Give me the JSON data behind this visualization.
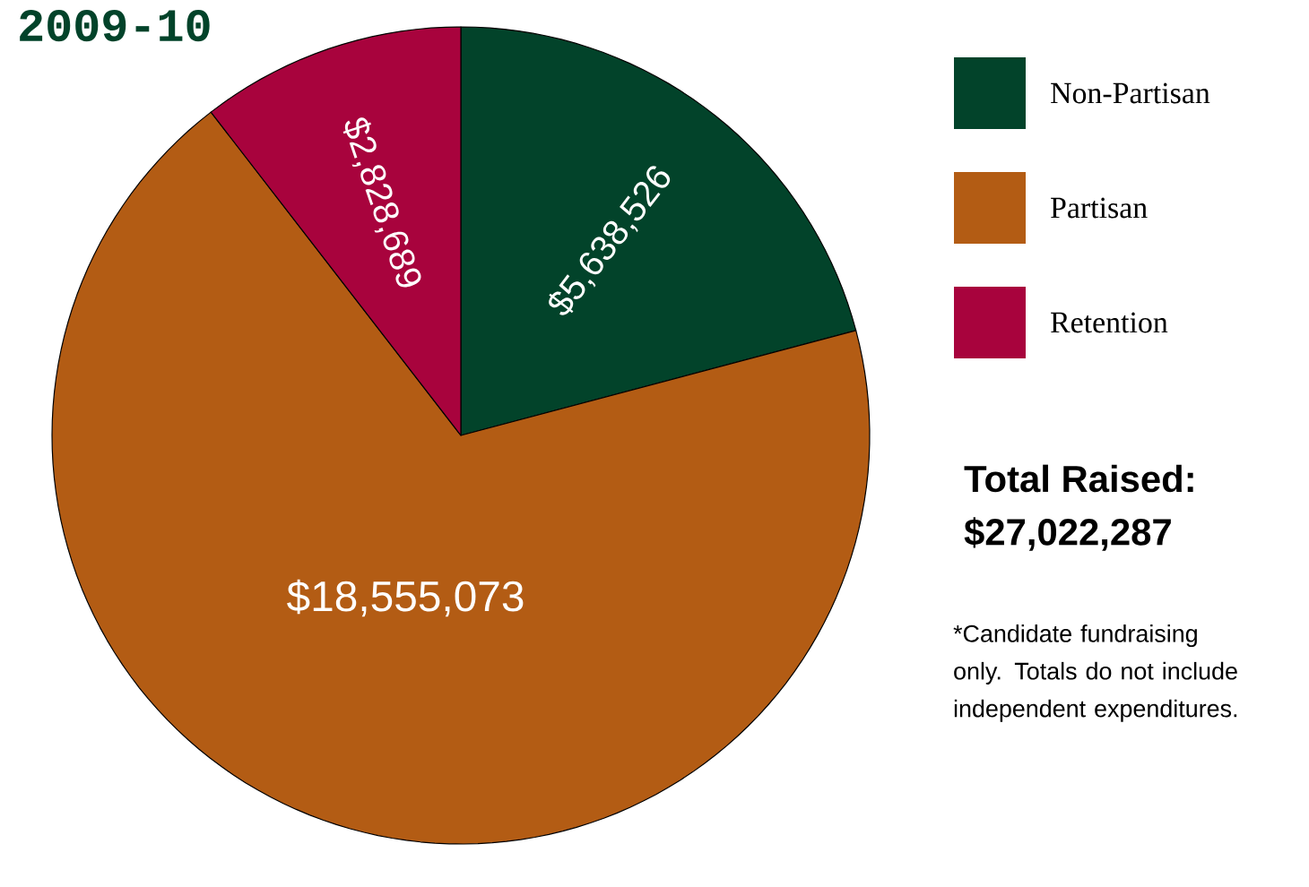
{
  "chart_data": {
    "type": "pie",
    "title": "2009-10",
    "categories": [
      "Non-Partisan",
      "Partisan",
      "Retention"
    ],
    "values": [
      5638526,
      18555073,
      2828689
    ],
    "colors": [
      "#02432a",
      "#b35c14",
      "#a8033d"
    ],
    "value_labels": [
      "$5,638,526",
      "$18,555,073",
      "$2,828,689"
    ],
    "legend": "right",
    "annotations": [
      "Total Raised:",
      "$27,022,287",
      "*Candidate fundraising only. Totals do not include independent expenditures."
    ]
  }
}
